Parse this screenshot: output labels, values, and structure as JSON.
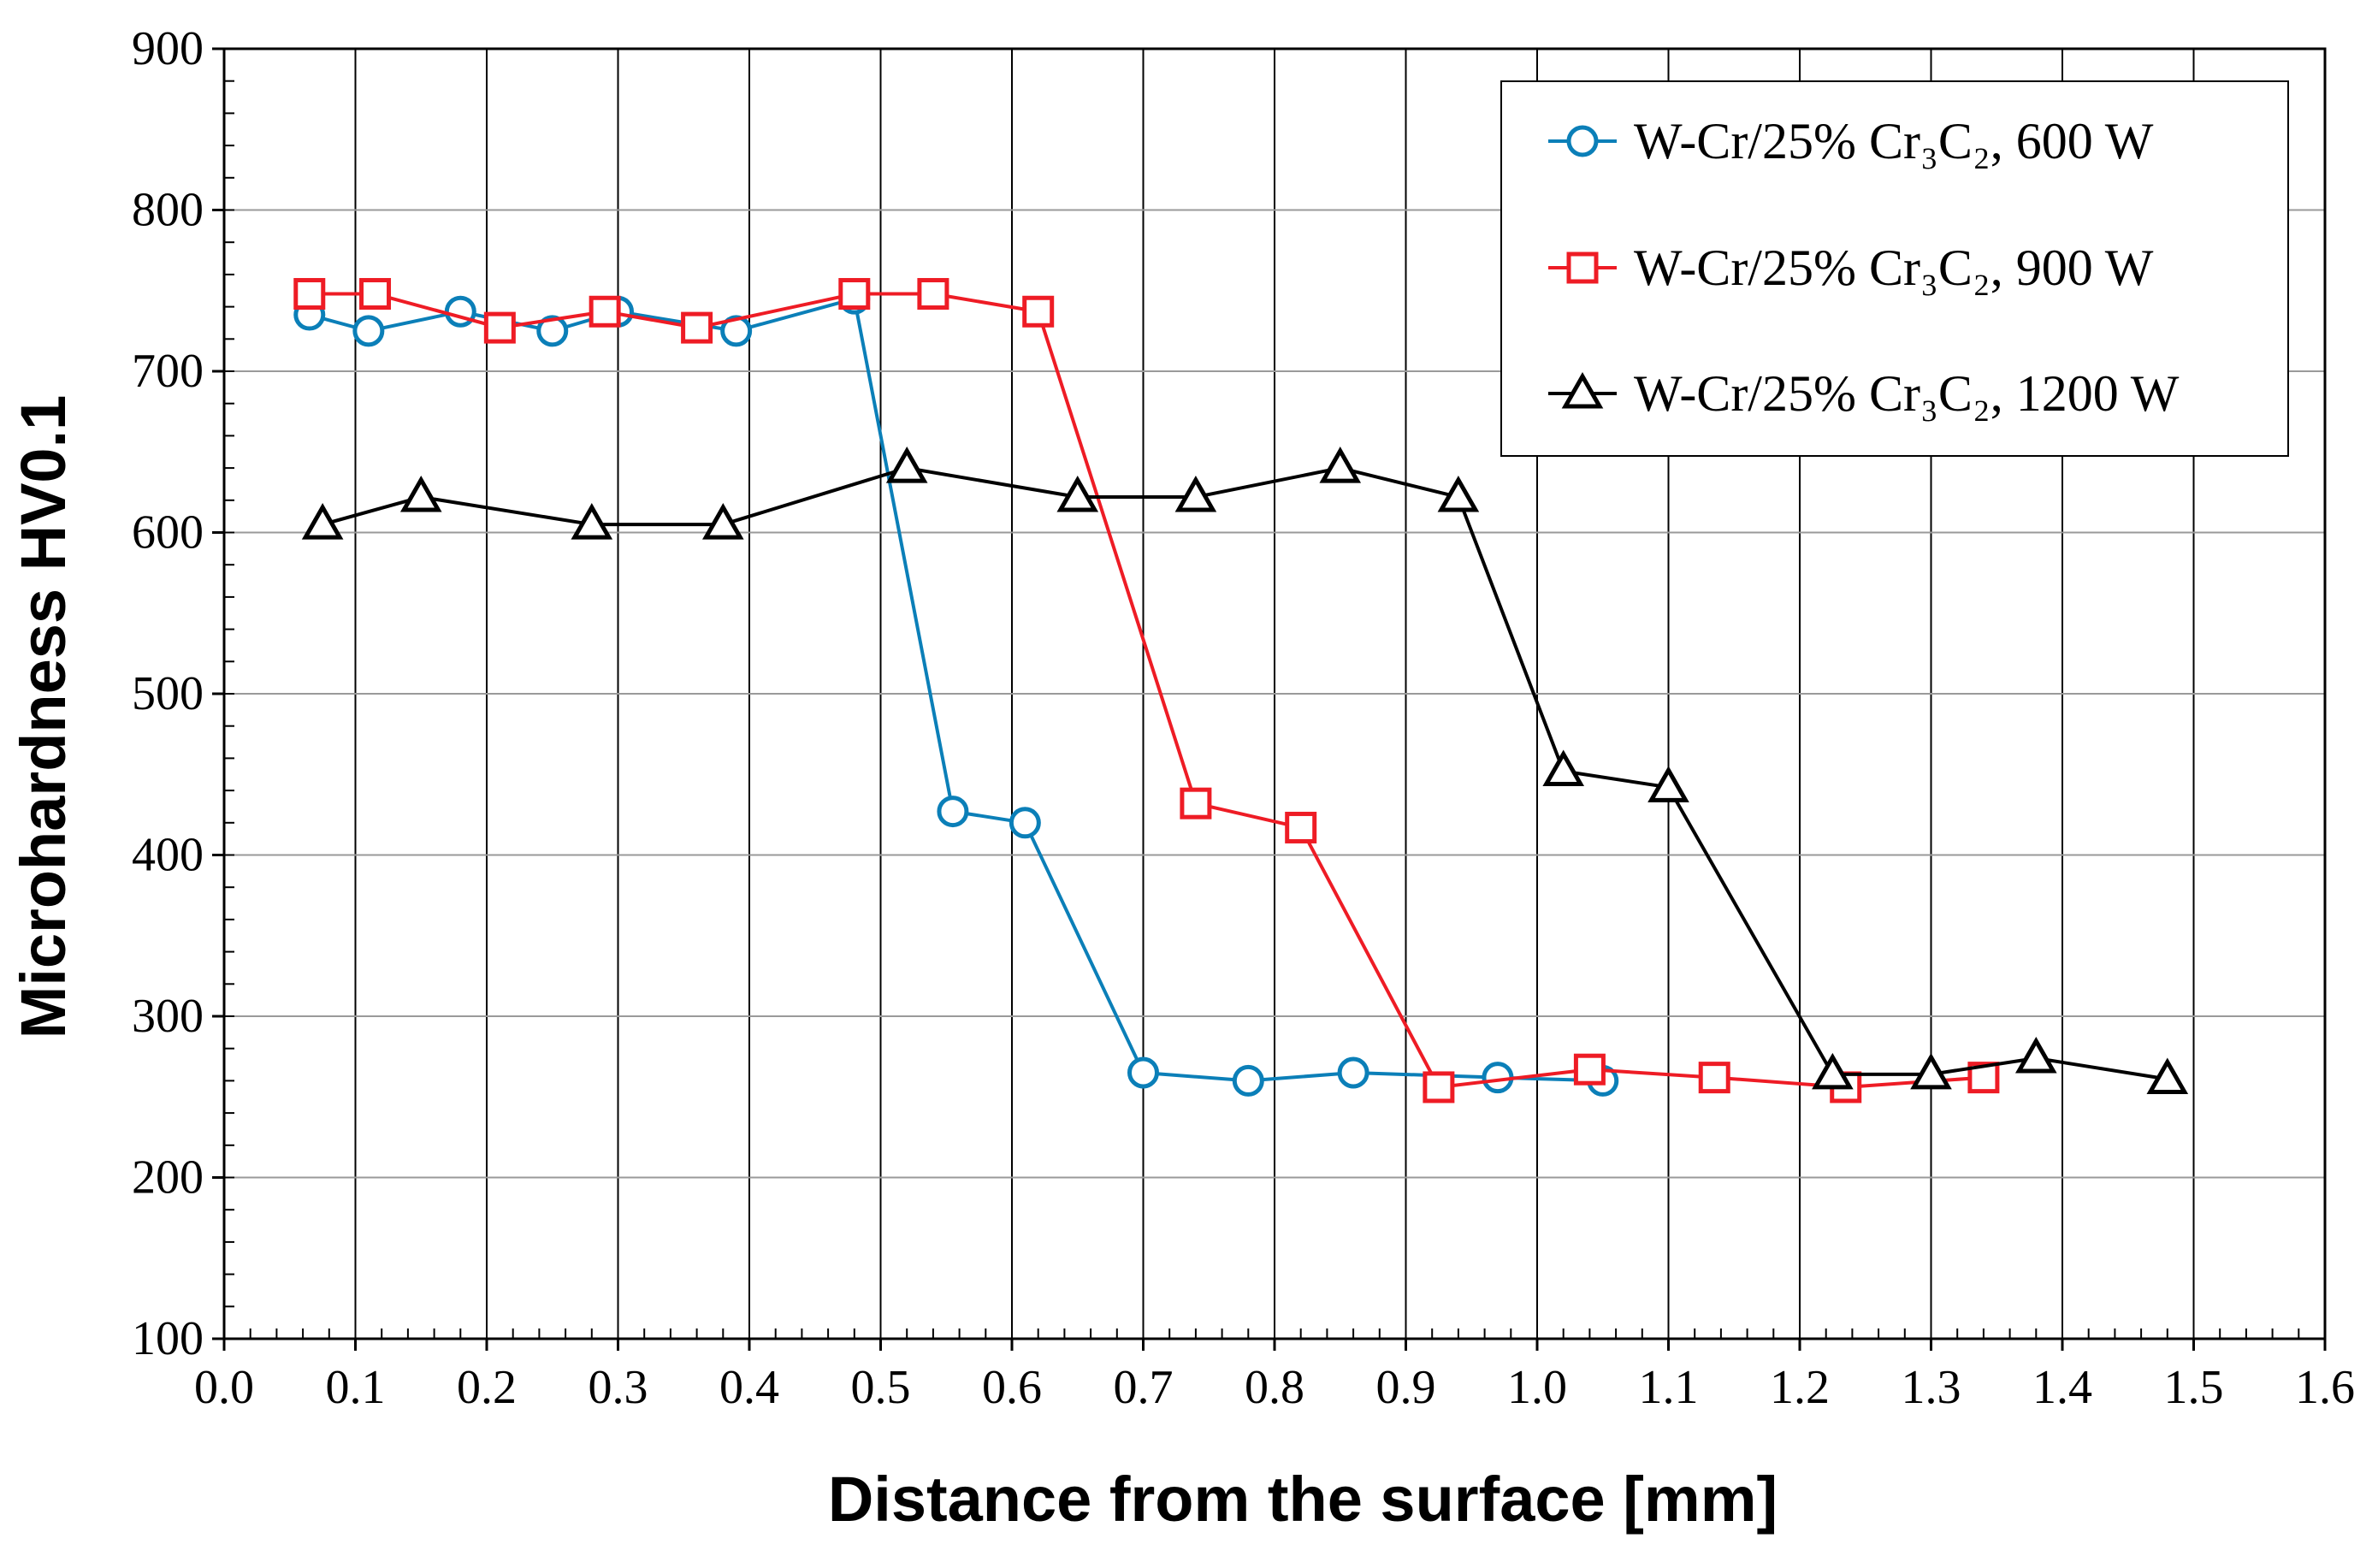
{
  "chart_data": {
    "type": "line",
    "title": "",
    "xlabel": "Distance from the surface [mm]",
    "ylabel": "Microhardness HV0.1",
    "xlim": [
      0.0,
      1.6
    ],
    "ylim": [
      100,
      900
    ],
    "xticks": [
      "0.0",
      "0.1",
      "0.2",
      "0.3",
      "0.4",
      "0.5",
      "0.6",
      "0.7",
      "0.8",
      "0.9",
      "1.0",
      "1.1",
      "1.2",
      "1.3",
      "1.4",
      "1.5",
      "1.6"
    ],
    "yticks": [
      "100",
      "200",
      "300",
      "400",
      "500",
      "600",
      "700",
      "800",
      "900"
    ],
    "grid": true,
    "legend_position": "top-right",
    "series": [
      {
        "name": "W-Cr/25% Cr₃C₂, 600 W",
        "color": "#0b7fb8",
        "marker": "circle",
        "x": [
          0.065,
          0.11,
          0.18,
          0.25,
          0.3,
          0.39,
          0.48,
          0.555,
          0.61,
          0.7,
          0.78,
          0.86,
          0.97,
          1.05
        ],
        "y": [
          735,
          725,
          737,
          725,
          737,
          725,
          745,
          427,
          420,
          265,
          260,
          265,
          262,
          260
        ]
      },
      {
        "name": "W-Cr/25% Cr₃C₂, 900 W",
        "color": "#ee1c25",
        "marker": "square",
        "x": [
          0.065,
          0.115,
          0.21,
          0.29,
          0.36,
          0.48,
          0.54,
          0.62,
          0.74,
          0.82,
          0.925,
          1.04,
          1.135,
          1.235,
          1.34
        ],
        "y": [
          748,
          748,
          727,
          737,
          727,
          748,
          748,
          737,
          432,
          417,
          256,
          267,
          262,
          256,
          262
        ]
      },
      {
        "name": "W-Cr/25% Cr₃C₂, 1200 W",
        "color": "#000000",
        "marker": "triangle",
        "x": [
          0.075,
          0.15,
          0.28,
          0.38,
          0.52,
          0.65,
          0.74,
          0.85,
          0.94,
          1.02,
          1.1,
          1.225,
          1.3,
          1.38,
          1.48
        ],
        "y": [
          605,
          622,
          605,
          605,
          640,
          622,
          622,
          640,
          622,
          452,
          442,
          264,
          264,
          274,
          261
        ]
      }
    ]
  }
}
